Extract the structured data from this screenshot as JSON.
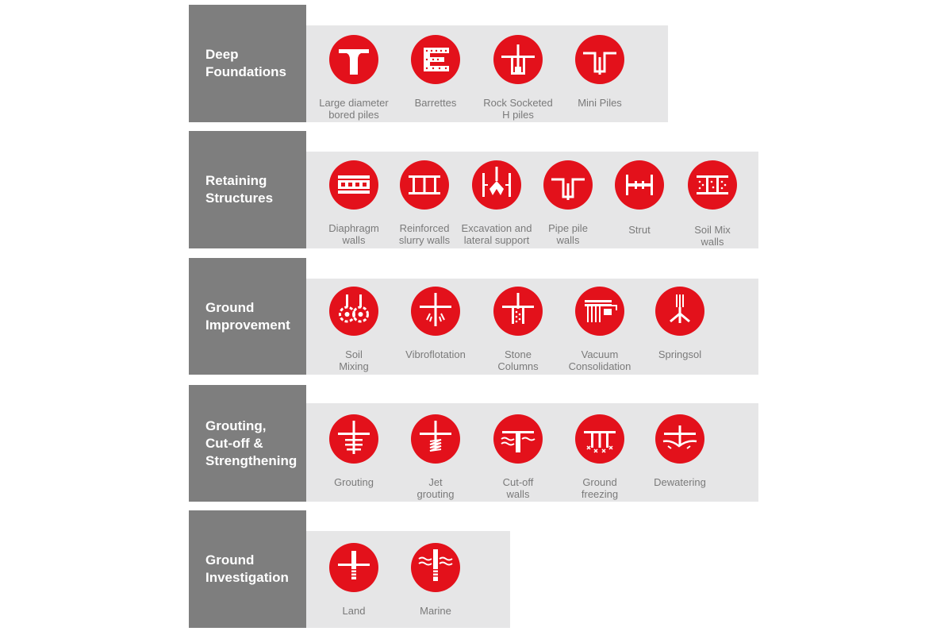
{
  "accent_color": "#e3111b",
  "categories": [
    {
      "label": "Deep\nFoundations",
      "items": [
        {
          "label": "Large diameter\nbored piles",
          "icon": "large-diameter-bored-pile-icon"
        },
        {
          "label": "Barrettes",
          "icon": "barrette-icon"
        },
        {
          "label": "Rock Socketed\nH piles",
          "icon": "rock-socketed-h-pile-icon"
        },
        {
          "label": "Mini Piles",
          "icon": "mini-pile-icon"
        }
      ]
    },
    {
      "label": "Retaining\nStructures",
      "items": [
        {
          "label": "Diaphragm\nwalls",
          "icon": "diaphragm-wall-icon"
        },
        {
          "label": "Reinforced\nslurry walls",
          "icon": "reinforced-slurry-wall-icon"
        },
        {
          "label": "Excavation and\nlateral support",
          "icon": "excavation-lateral-support-icon"
        },
        {
          "label": "Pipe pile\nwalls",
          "icon": "pipe-pile-wall-icon"
        },
        {
          "label": "Strut",
          "icon": "strut-icon"
        },
        {
          "label": "Soil Mix\nwalls",
          "icon": "soil-mix-wall-icon"
        }
      ]
    },
    {
      "label": "Ground\nImprovement",
      "items": [
        {
          "label": "Soil\nMixing",
          "icon": "soil-mixing-icon"
        },
        {
          "label": "Vibroflotation",
          "icon": "vibroflotation-icon"
        },
        {
          "label": "Stone\nColumns",
          "icon": "stone-column-icon"
        },
        {
          "label": "Vacuum\nConsolidation",
          "icon": "vacuum-consolidation-icon"
        },
        {
          "label": "Springsol",
          "icon": "springsol-icon"
        }
      ]
    },
    {
      "label": "Grouting,\nCut-off &\nStrengthening",
      "items": [
        {
          "label": "Grouting",
          "icon": "grouting-icon"
        },
        {
          "label": "Jet\ngrouting",
          "icon": "jet-grouting-icon"
        },
        {
          "label": "Cut-off\nwalls",
          "icon": "cut-off-wall-icon"
        },
        {
          "label": "Ground\nfreezing",
          "icon": "ground-freezing-icon"
        },
        {
          "label": "Dewatering",
          "icon": "dewatering-icon"
        }
      ]
    },
    {
      "label": "Ground\nInvestigation",
      "items": [
        {
          "label": "Land",
          "icon": "land-investigation-icon"
        },
        {
          "label": "Marine",
          "icon": "marine-investigation-icon"
        }
      ]
    }
  ]
}
